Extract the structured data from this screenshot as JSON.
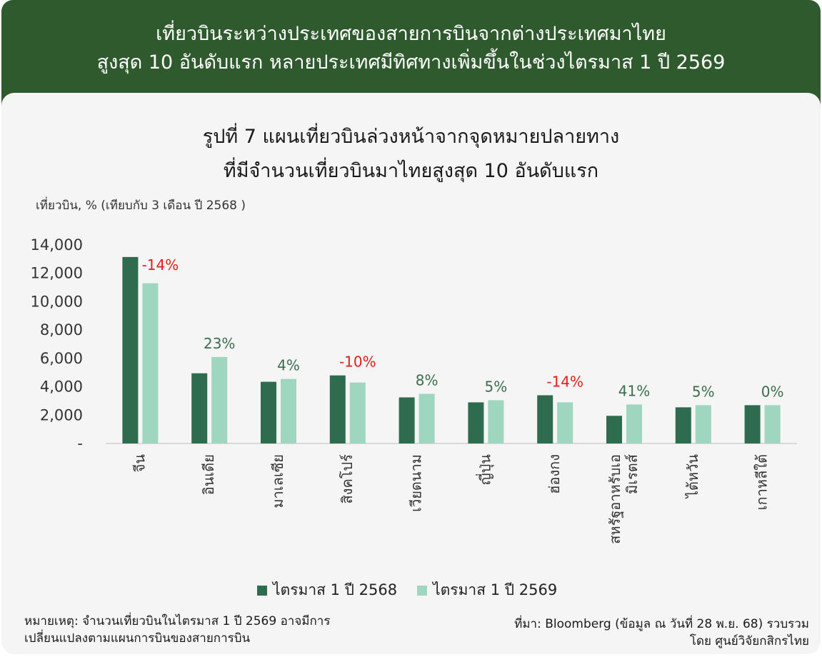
{
  "header": {
    "line1": "เที่ยวบินระหว่างประเทศของสายการบินจากต่างประเทศมาไทย",
    "line2": "สูงสุด 10 อันดับแรก หลายประเทศมีทิศทางเพิ่มขึ้นในช่วงไตรมาส 1 ปี 2569"
  },
  "figure": {
    "title_line1": "รูปที่ 7 แผนเที่ยวบินล่วงหน้าจากจุดหมายปลายทาง",
    "title_line2": "ที่มีจำนวนเที่ยวบินมาไทยสูงสุด 10 อันดับแรก",
    "unit_label": "เที่ยวบิน, % (เทียบกับ 3 เดือน ปี 2568 )"
  },
  "chart_data": {
    "type": "bar",
    "categories": [
      "จีน",
      "อินเดีย",
      "มาเลเซีย",
      "สิงคโปร์",
      "เวียดนาม",
      "ญี่ปุ่น",
      "ฮ่องกง",
      "สหรัฐอาหรับเอ มิเรตส์",
      "ไต้หวัน",
      "เกาหลีใต้"
    ],
    "series": [
      {
        "name": "ไตรมาส 1 ปี 2568",
        "color": "#2e6b4f",
        "values": [
          13150,
          4950,
          4350,
          4800,
          3250,
          2900,
          3400,
          1950,
          2550,
          2700
        ]
      },
      {
        "name": "ไตรมาส 1 ปี 2569",
        "color": "#9ed6c0",
        "values": [
          11300,
          6100,
          4550,
          4300,
          3500,
          3050,
          2900,
          2750,
          2700,
          2700
        ]
      }
    ],
    "change_labels": [
      "-14%",
      "23%",
      "4%",
      "-10%",
      "8%",
      "5%",
      "-14%",
      "41%",
      "5%",
      "0%"
    ],
    "change_colors": {
      "negative": "#e0201b",
      "positive": "#3b6e4c"
    },
    "y_ticks": [
      "-",
      "2,000",
      "4,000",
      "6,000",
      "8,000",
      "10,000",
      "12,000",
      "14,000"
    ],
    "ylim": [
      0,
      14000
    ],
    "grid": false,
    "legend_placement": "bottom-center"
  },
  "footer": {
    "note_line1": "หมายเหตุ: จำนวนเที่ยวบินในไตรมาส 1 ปี 2569 อาจมีการ",
    "note_line2": "เปลี่ยนแปลงตามแผนการบินของสายการบิน",
    "source_line1": "ที่มา: Bloomberg (ข้อมูล ณ วันที่ 28 พ.ย. 68) รวบรวม",
    "source_line2": "โดย ศูนย์วิจัยกสิกรไทย"
  },
  "colors": {
    "header_bg": "#2f5a2e",
    "panel_bg": "#f5f5f5"
  }
}
